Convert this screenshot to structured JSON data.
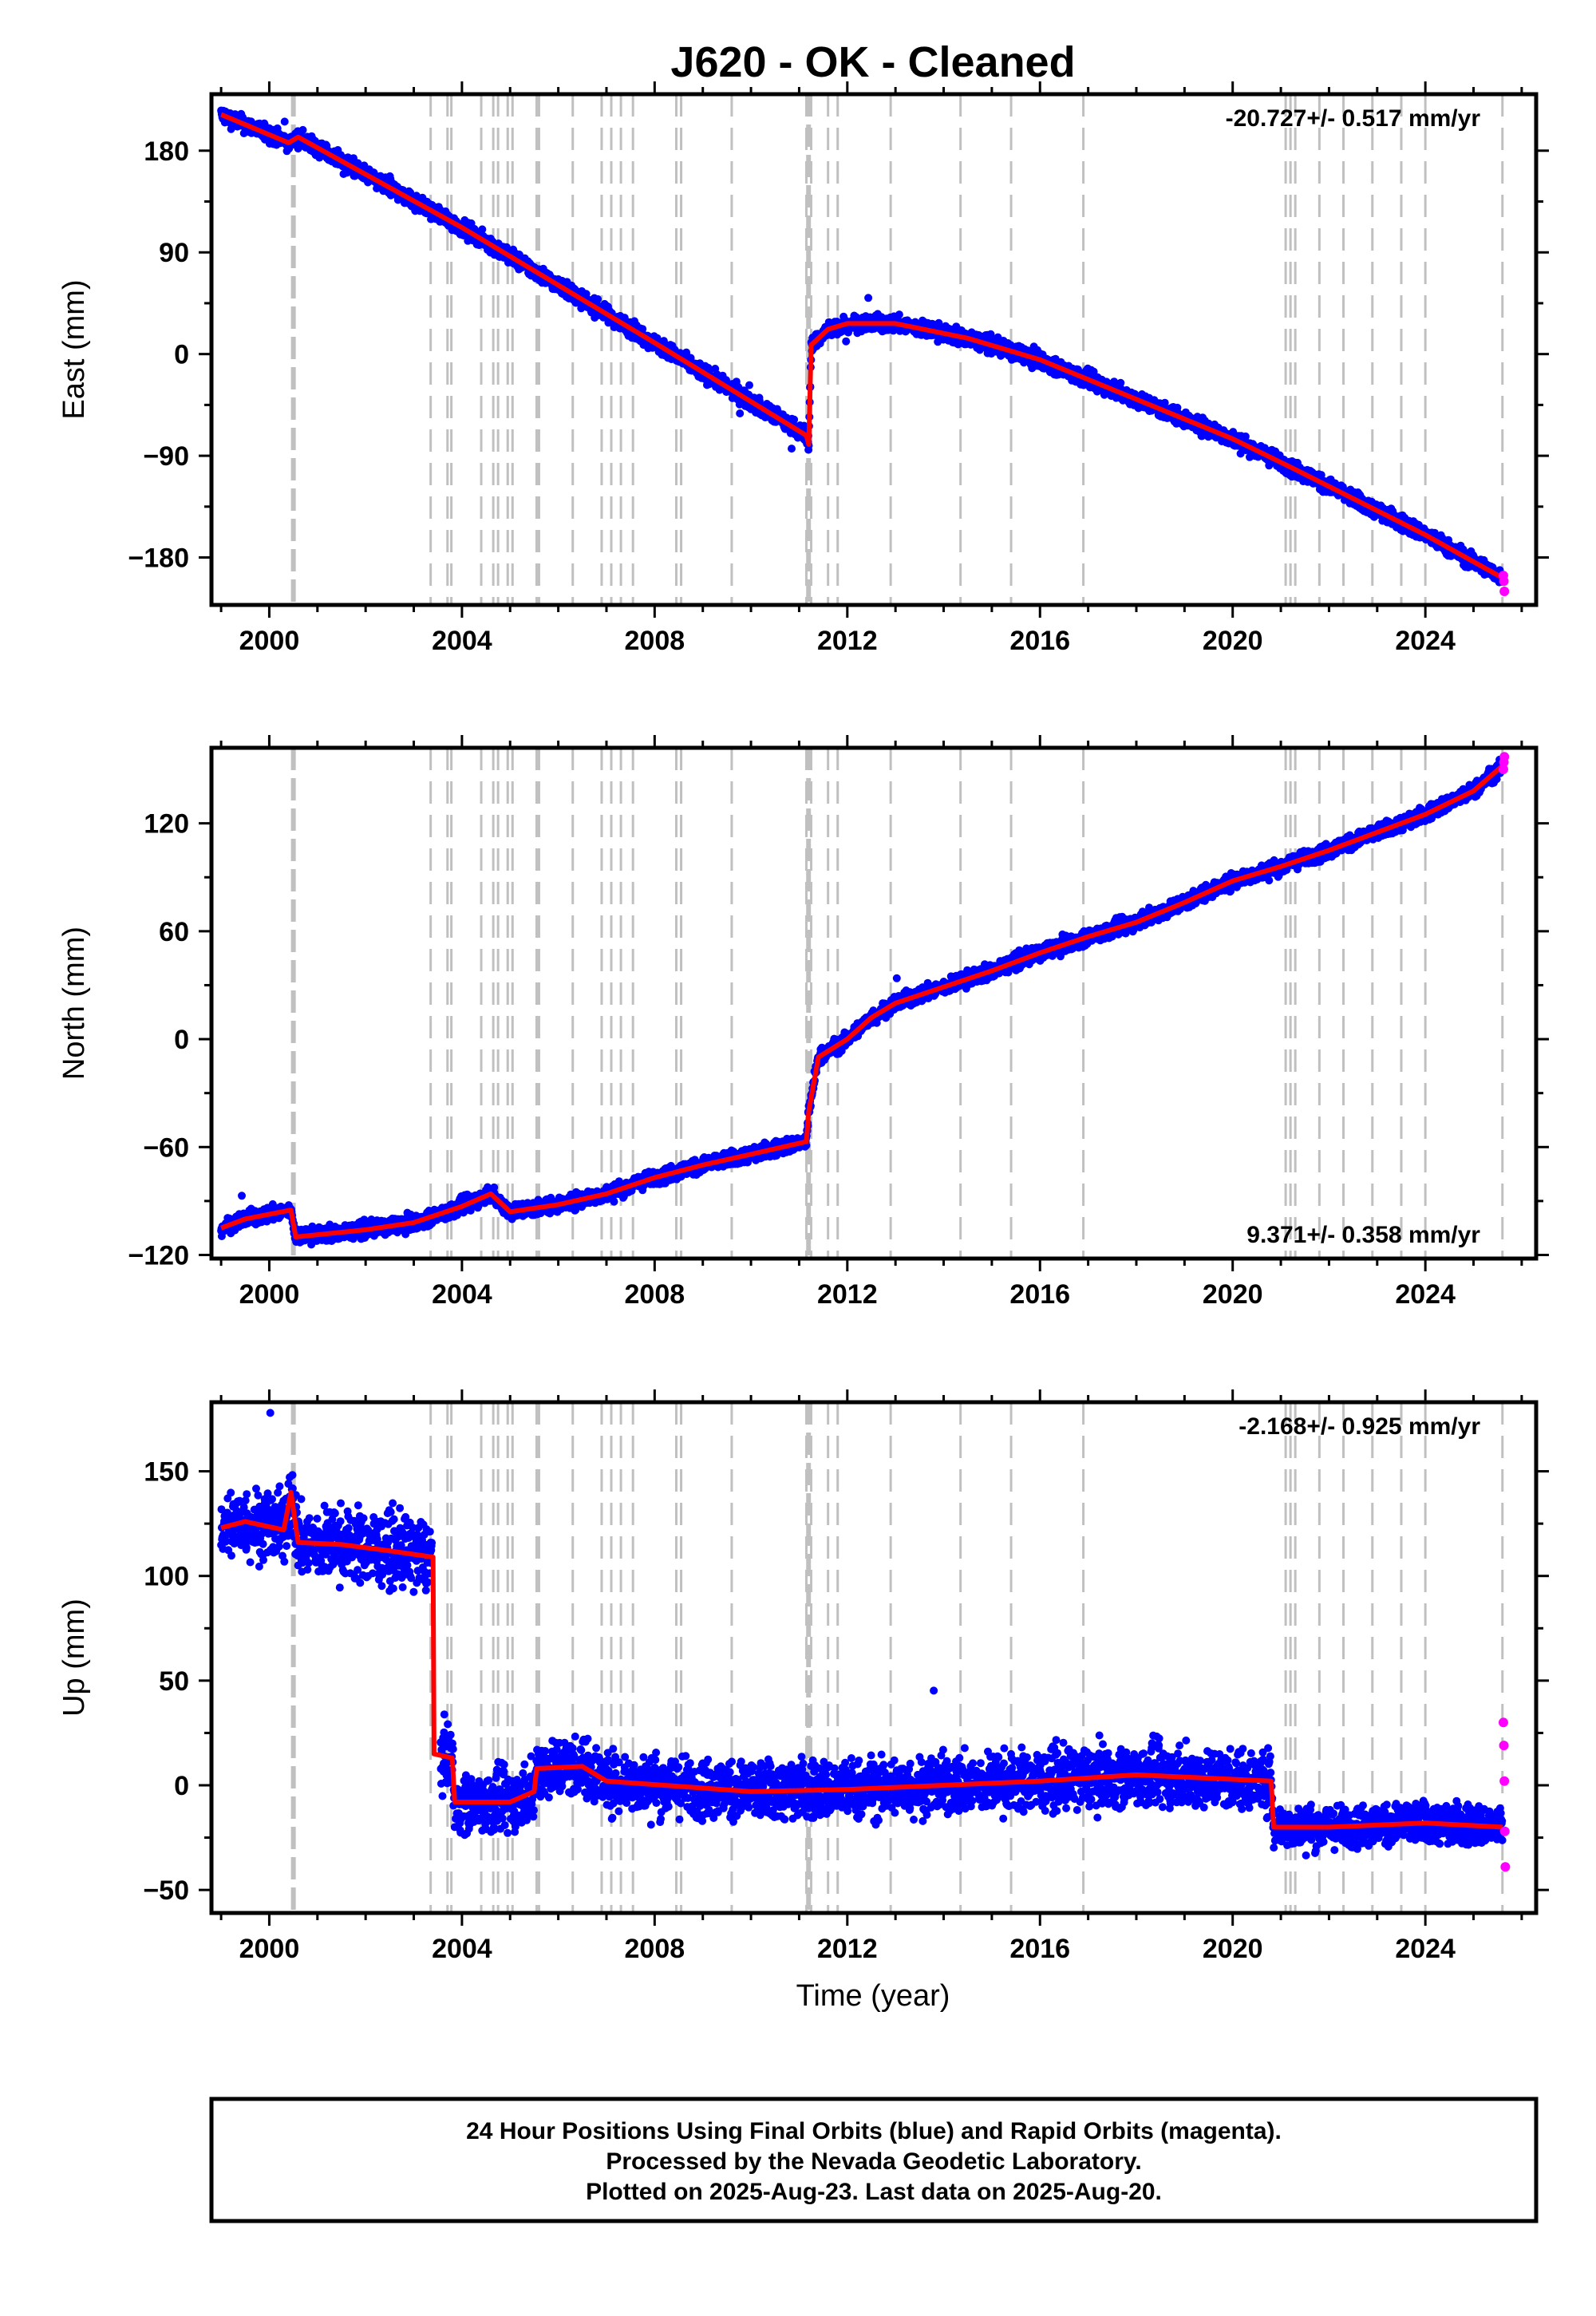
{
  "title": "J620  - OK - Cleaned",
  "xlabel": "Time (year)",
  "footer": {
    "line1": "24 Hour Positions Using Final Orbits (blue) and Rapid Orbits (magenta).",
    "line2": "Processed by the Nevada Geodetic Laboratory.",
    "line3": "Plotted on 2025-Aug-23. Last data on 2025-Aug-20."
  },
  "colors": {
    "final": "#0000ff",
    "rapid": "#ff00ff",
    "model": "#ff0000",
    "events": "#c0c0c0"
  },
  "chart_data": [
    {
      "type": "scatter",
      "name": "East",
      "ylabel": "East (mm)",
      "rate_label": "-20.727+/- 0.517 mm/yr",
      "rate_position": "top-right",
      "xlim": [
        1998.8,
        2026.3
      ],
      "ylim": [
        -222,
        230
      ],
      "x_ticks": [
        2000,
        2004,
        2008,
        2012,
        2016,
        2020,
        2024
      ],
      "y_ticks": [
        -180,
        -90,
        0,
        90,
        180
      ],
      "y_tick_labels": [
        "−180",
        "−90",
        "0",
        "90",
        "180"
      ],
      "trend": [
        [
          1999.0,
          212
        ],
        [
          2000.4,
          187
        ],
        [
          2000.6,
          192
        ],
        [
          2004.0,
          112
        ],
        [
          2008.0,
          10
        ],
        [
          2011.15,
          -72
        ],
        [
          2011.2,
          -80
        ],
        [
          2011.25,
          8
        ],
        [
          2011.6,
          22
        ],
        [
          2012.0,
          27
        ],
        [
          2013.0,
          27
        ],
        [
          2014.5,
          14
        ],
        [
          2016.0,
          -5
        ],
        [
          2018.0,
          -40
        ],
        [
          2020.0,
          -75
        ],
        [
          2021.2,
          -100
        ],
        [
          2024.0,
          -160
        ],
        [
          2025.6,
          -198
        ]
      ],
      "noise": 5,
      "rapid": [
        [
          2025.62,
          -196
        ],
        [
          2025.63,
          -201
        ],
        [
          2025.64,
          -210
        ]
      ]
    },
    {
      "type": "scatter",
      "name": "North",
      "ylabel": "North (mm)",
      "rate_label": "9.371+/- 0.358 mm/yr",
      "rate_position": "bottom-right",
      "xlim": [
        1998.8,
        2026.3
      ],
      "ylim": [
        -122,
        162
      ],
      "x_ticks": [
        2000,
        2004,
        2008,
        2012,
        2016,
        2020,
        2024
      ],
      "y_ticks": [
        -120,
        -60,
        0,
        60,
        120
      ],
      "y_tick_labels": [
        "−120",
        "−60",
        "0",
        "60",
        "120"
      ],
      "trend": [
        [
          1999.0,
          -105
        ],
        [
          1999.5,
          -100
        ],
        [
          2000.45,
          -95
        ],
        [
          2000.55,
          -110
        ],
        [
          2002.0,
          -106
        ],
        [
          2003.0,
          -102
        ],
        [
          2004.0,
          -93
        ],
        [
          2004.6,
          -86
        ],
        [
          2005.0,
          -96
        ],
        [
          2006.0,
          -92
        ],
        [
          2007.0,
          -86
        ],
        [
          2008.0,
          -77
        ],
        [
          2009.0,
          -70
        ],
        [
          2010.0,
          -64
        ],
        [
          2011.15,
          -57
        ],
        [
          2011.2,
          -40
        ],
        [
          2011.4,
          -10
        ],
        [
          2012.0,
          0
        ],
        [
          2012.5,
          12
        ],
        [
          2013.0,
          20
        ],
        [
          2014.0,
          29
        ],
        [
          2015.0,
          38
        ],
        [
          2016.0,
          48
        ],
        [
          2017.0,
          57
        ],
        [
          2018.0,
          65
        ],
        [
          2019.0,
          76
        ],
        [
          2020.0,
          88
        ],
        [
          2021.0,
          96
        ],
        [
          2022.0,
          105
        ],
        [
          2023.0,
          115
        ],
        [
          2024.0,
          125
        ],
        [
          2025.0,
          138
        ],
        [
          2025.6,
          152
        ]
      ],
      "noise": 3,
      "rapid": [
        [
          2025.62,
          150
        ],
        [
          2025.63,
          154
        ],
        [
          2025.64,
          157
        ]
      ]
    },
    {
      "type": "scatter",
      "name": "Up",
      "ylabel": "Up (mm)",
      "rate_label": "-2.168+/- 0.925 mm/yr",
      "rate_position": "top-right",
      "xlim": [
        1998.8,
        2026.3
      ],
      "ylim": [
        -61,
        183
      ],
      "x_ticks": [
        2000,
        2004,
        2008,
        2012,
        2016,
        2020,
        2024
      ],
      "y_ticks": [
        -50,
        0,
        50,
        100,
        150
      ],
      "y_tick_labels": [
        "−50",
        "0",
        "50",
        "100",
        "150"
      ],
      "trend": [
        [
          1999.0,
          123
        ],
        [
          1999.5,
          126
        ],
        [
          2000.3,
          122
        ],
        [
          2000.45,
          140
        ],
        [
          2000.6,
          116
        ],
        [
          2001.5,
          115
        ],
        [
          2002.5,
          112
        ],
        [
          2003.4,
          109
        ],
        [
          2003.42,
          15
        ],
        [
          2003.8,
          13
        ],
        [
          2003.85,
          -8
        ],
        [
          2005.0,
          -8
        ],
        [
          2005.5,
          -3
        ],
        [
          2005.55,
          8
        ],
        [
          2006.5,
          9
        ],
        [
          2007.0,
          2
        ],
        [
          2010.0,
          -3
        ],
        [
          2012.0,
          -2
        ],
        [
          2014.0,
          0
        ],
        [
          2016.0,
          2
        ],
        [
          2018.0,
          5
        ],
        [
          2020.8,
          2
        ],
        [
          2020.85,
          -20
        ],
        [
          2022.0,
          -20
        ],
        [
          2024.0,
          -18
        ],
        [
          2025.6,
          -20
        ]
      ],
      "noise": 10,
      "rapid": [
        [
          2025.62,
          30
        ],
        [
          2025.63,
          19
        ],
        [
          2025.64,
          2
        ],
        [
          2025.65,
          -22
        ],
        [
          2025.66,
          -39
        ]
      ]
    }
  ],
  "event_lines": [
    2003.35,
    2003.7,
    2003.78,
    2004.4,
    2004.65,
    2004.75,
    2004.95,
    2005.05,
    2005.55,
    2005.6,
    2006.3,
    2006.9,
    2007.1,
    2007.3,
    2007.55,
    2008.45,
    2008.55,
    2009.6,
    2011.15,
    2011.25,
    2011.6,
    2011.8,
    2012.9,
    2014.35,
    2015.4,
    2016.9,
    2021.1,
    2021.2,
    2021.3,
    2021.8,
    2022.3,
    2022.9,
    2023.5,
    2024.0,
    2025.6
  ],
  "event_bands": [
    2000.45,
    2000.55,
    2011.17,
    2011.22
  ]
}
